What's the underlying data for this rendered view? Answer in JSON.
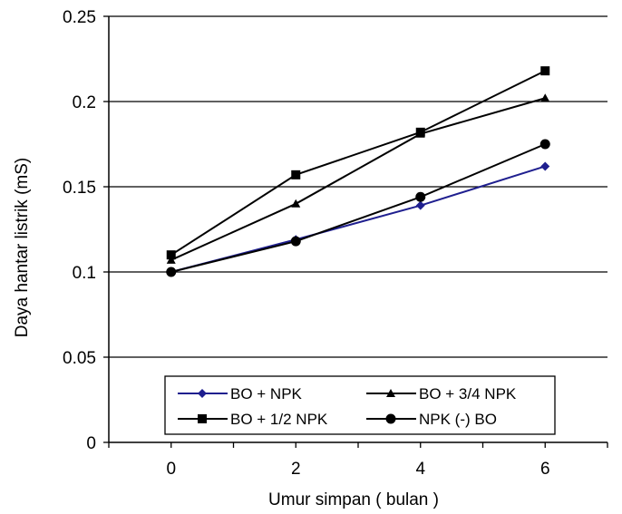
{
  "chart_data": {
    "type": "line",
    "xlabel": "Umur simpan ( bulan )",
    "ylabel": "Daya hantar listrik (mS)",
    "x": [
      0,
      2,
      4,
      6
    ],
    "x_ticks": [
      "0",
      "2",
      "4",
      "6"
    ],
    "xlim": [
      -1,
      7
    ],
    "y_ticks": [
      "0",
      "0.05",
      "0.1",
      "0.15",
      "0.2",
      "0.25"
    ],
    "ylim": [
      0,
      0.25
    ],
    "grid": "horizontal",
    "legend_position": "bottom-right",
    "series": [
      {
        "name": "BO + NPK",
        "values": [
          0.1,
          0.119,
          0.139,
          0.162
        ],
        "color": "#1f1f8f",
        "marker": "diamond"
      },
      {
        "name": "BO + 3/4 NPK",
        "values": [
          0.107,
          0.14,
          0.181,
          0.202
        ],
        "color": "#000000",
        "marker": "triangle"
      },
      {
        "name": "BO + 1/2 NPK",
        "values": [
          0.11,
          0.157,
          0.182,
          0.218
        ],
        "color": "#000000",
        "marker": "square"
      },
      {
        "name": "NPK (-) BO",
        "values": [
          0.1,
          0.118,
          0.144,
          0.175
        ],
        "color": "#000000",
        "marker": "circle"
      }
    ]
  }
}
